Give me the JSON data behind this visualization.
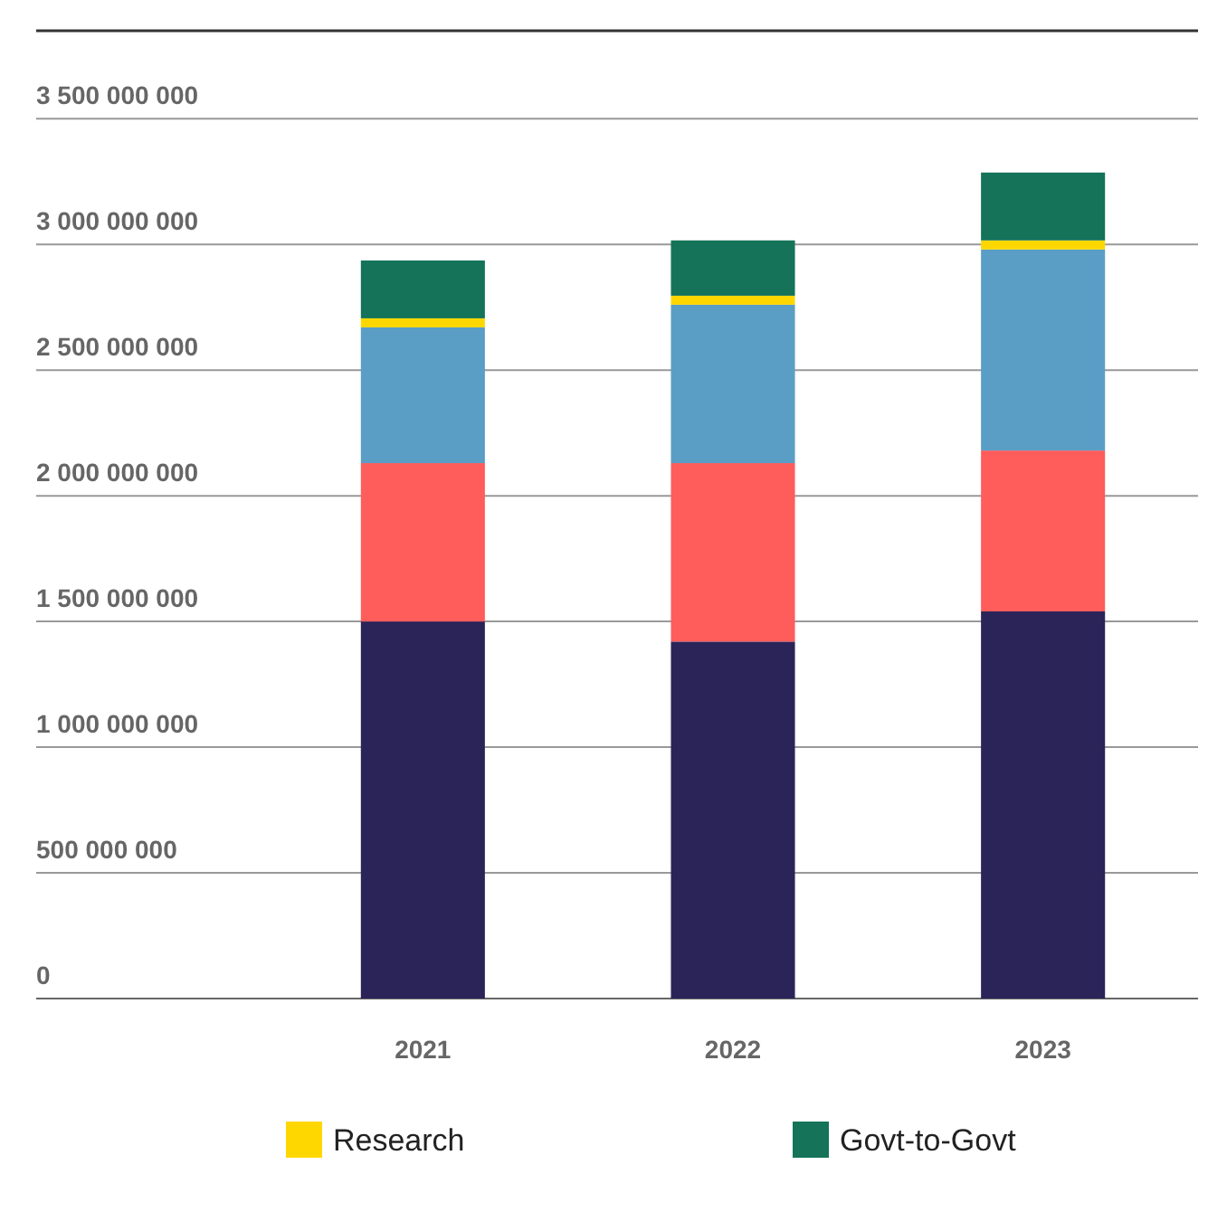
{
  "chart_data": {
    "type": "bar",
    "stacked": true,
    "categories": [
      "2021",
      "2022",
      "2023"
    ],
    "series": [
      {
        "color": "#2b2459",
        "values": [
          1500000000,
          1420000000,
          1540000000
        ]
      },
      {
        "color": "#ff5c5c",
        "values": [
          630000000,
          710000000,
          640000000
        ]
      },
      {
        "color": "#5a9ec6",
        "values": [
          540000000,
          630000000,
          800000000
        ]
      },
      {
        "name": "Research",
        "color": "#ffd700",
        "values": [
          36000000,
          36000000,
          36000000
        ]
      },
      {
        "name": "Govt-to-Govt",
        "color": "#147358",
        "values": [
          230000000,
          220000000,
          270000000
        ]
      }
    ],
    "ylim": [
      0,
      3850000000
    ],
    "yticks": [
      {
        "value": 0,
        "label": "0"
      },
      {
        "value": 500000000,
        "label": "500 000 000"
      },
      {
        "value": 1000000000,
        "label": "1 000 000 000"
      },
      {
        "value": 1500000000,
        "label": "1 500 000 000"
      },
      {
        "value": 2000000000,
        "label": "2 000 000 000"
      },
      {
        "value": 2500000000,
        "label": "2 500 000 000"
      },
      {
        "value": 3000000000,
        "label": "3 000 000 000"
      },
      {
        "value": 3500000000,
        "label": "3 500 000 000"
      }
    ],
    "grid": "y",
    "legend": "bottom"
  }
}
